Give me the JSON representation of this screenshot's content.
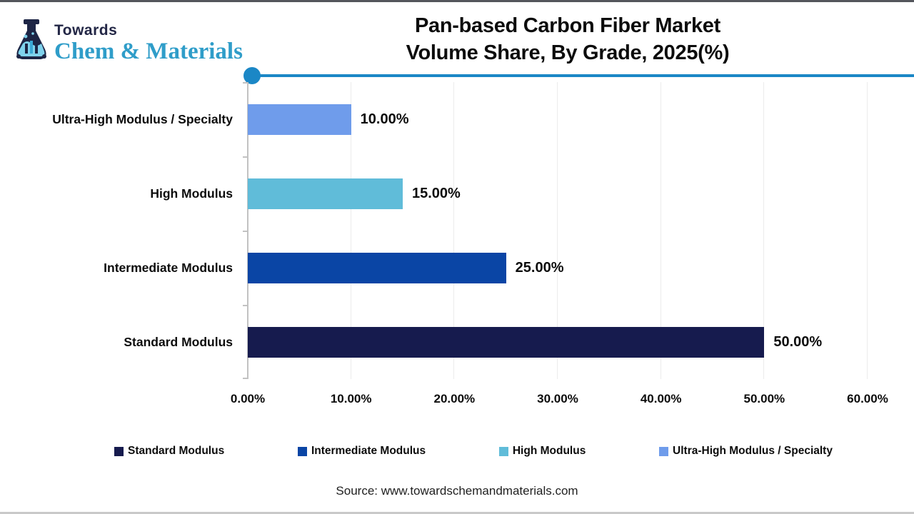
{
  "logo": {
    "towards": "Towards",
    "brand": "Chem & Materials"
  },
  "title": {
    "line1": "Pan-based Carbon Fiber Market",
    "line2": "Volume Share, By Grade, 2025(%)"
  },
  "source": "Source: www.towardschemandmaterials.com",
  "colors": {
    "accent": "#1b87c6",
    "brand_navy": "#232746",
    "brand_teal": "#2f9dc9",
    "standard_modulus": "#161b4e",
    "intermediate_modulus": "#0a45a5",
    "high_modulus": "#60bcd9",
    "ultra_high_modulus": "#6f9ceb"
  },
  "chart_data": {
    "type": "bar",
    "orientation": "horizontal",
    "title": "Pan-based Carbon Fiber Market Volume Share, By Grade, 2025(%)",
    "categories": [
      "Ultra-High Modulus / Specialty",
      "High Modulus",
      "Intermediate Modulus",
      "Standard Modulus"
    ],
    "values": [
      10,
      15,
      25,
      50
    ],
    "value_labels": [
      "10.00%",
      "15.00%",
      "25.00%",
      "50.00%"
    ],
    "bar_colors": [
      "#6f9ceb",
      "#60bcd9",
      "#0a45a5",
      "#161b4e"
    ],
    "xlim": [
      0,
      60
    ],
    "x_ticks": [
      0,
      10,
      20,
      30,
      40,
      50,
      60
    ],
    "x_tick_labels": [
      "0.00%",
      "10.00%",
      "20.00%",
      "30.00%",
      "40.00%",
      "50.00%",
      "60.00%"
    ],
    "grid": true,
    "legend_position": "bottom",
    "legend": [
      {
        "label": "Standard Modulus",
        "color": "#161b4e"
      },
      {
        "label": "Intermediate Modulus",
        "color": "#0a45a5"
      },
      {
        "label": "High Modulus",
        "color": "#60bcd9"
      },
      {
        "label": "Ultra-High Modulus / Specialty",
        "color": "#6f9ceb"
      }
    ]
  }
}
